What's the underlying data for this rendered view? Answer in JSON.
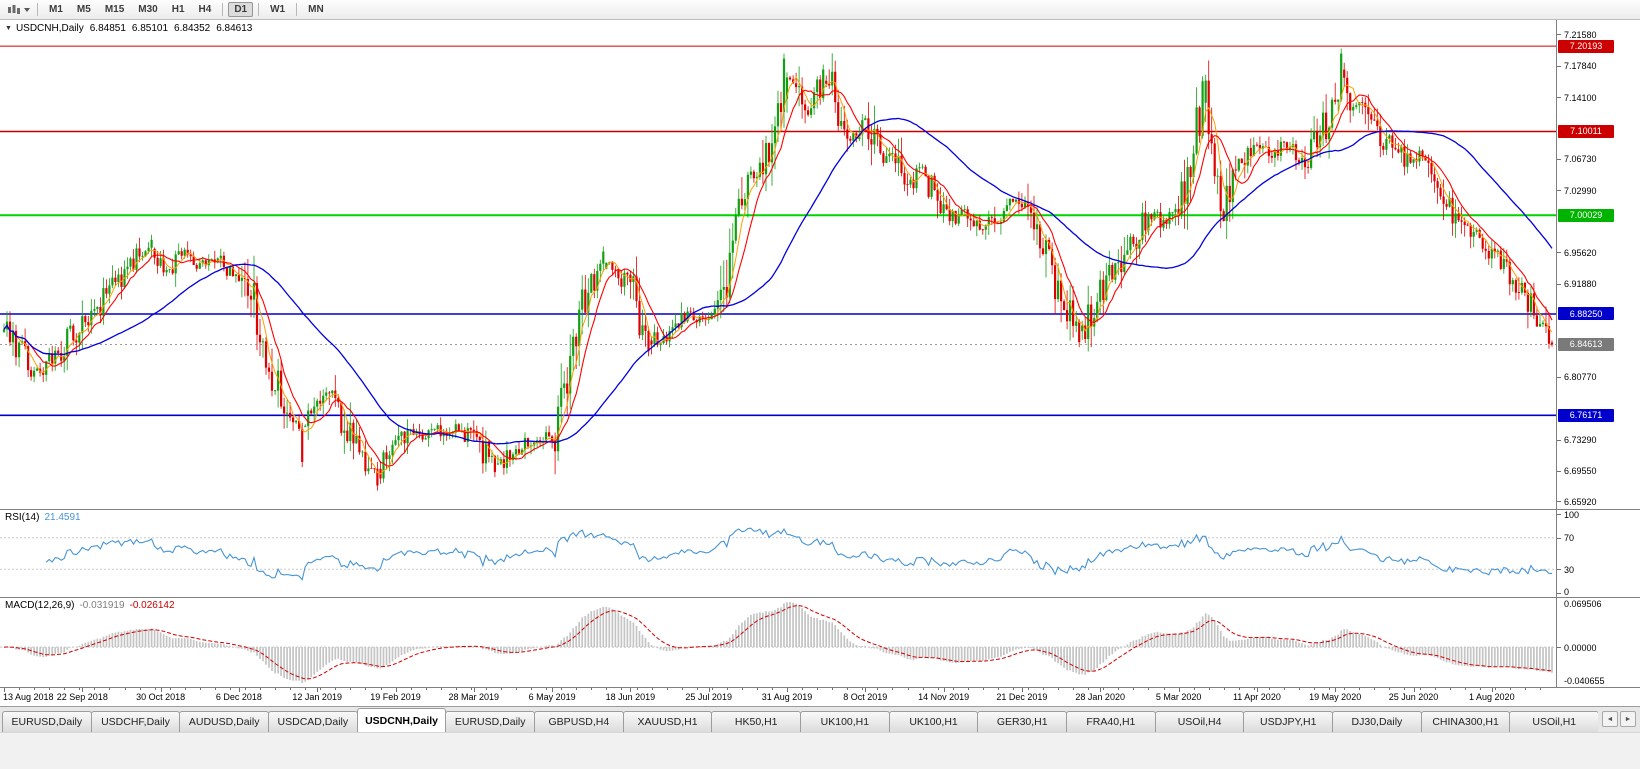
{
  "toolbar": {
    "timeframes": [
      {
        "label": "M1",
        "active": false
      },
      {
        "label": "M5",
        "active": false
      },
      {
        "label": "M15",
        "active": false
      },
      {
        "label": "M30",
        "active": false
      },
      {
        "label": "H1",
        "active": false
      },
      {
        "label": "H4",
        "active": false
      },
      {
        "label": "D1",
        "active": true
      },
      {
        "label": "W1",
        "active": false
      },
      {
        "label": "MN",
        "active": false
      }
    ]
  },
  "chart": {
    "collapse_arrow": "▼",
    "symbol_title": "USDCNH,Daily",
    "ohlc": {
      "open": "6.84851",
      "high": "6.85101",
      "low": "6.84352",
      "close": "6.84613"
    }
  },
  "price_axis": {
    "labels": [
      "7.21580",
      "7.17840",
      "7.14100",
      "7.10360",
      "7.06730",
      "7.02990",
      "6.99250",
      "6.95620",
      "6.91880",
      "6.88140",
      "6.84400",
      "6.80770",
      "6.77030",
      "6.73290",
      "6.69550",
      "6.65920"
    ],
    "badges": [
      {
        "text": "7.20193",
        "price": 7.20193,
        "color": "#cc0000"
      },
      {
        "text": "7.10011",
        "price": 7.10011,
        "color": "#cc0000"
      },
      {
        "text": "7.00029",
        "price": 7.00029,
        "color": "#00b300"
      },
      {
        "text": "6.88250",
        "price": 6.8825,
        "color": "#0000cc"
      },
      {
        "text": "6.84613",
        "price": 6.84613,
        "color": "#7a7a7a"
      },
      {
        "text": "6.76171",
        "price": 6.76171,
        "color": "#0000cc"
      }
    ]
  },
  "rsi_panel": {
    "name": "RSI(14)",
    "value": "21.4591",
    "axis_labels": [
      {
        "text": "100",
        "v": 100
      },
      {
        "text": "70",
        "v": 70
      },
      {
        "text": "30",
        "v": 30
      },
      {
        "text": "0",
        "v": 0
      }
    ]
  },
  "macd_panel": {
    "name": "MACD(12,26,9)",
    "value_main": "-0.031919",
    "value_signal": "-0.026142",
    "axis_top": "0.069506",
    "axis_zero": "0.00000",
    "axis_bottom": "-0.040655"
  },
  "date_axis": {
    "labels": [
      "13 Aug 2018",
      "22 Sep 2018",
      "30 Oct 2018",
      "6 Dec 2018",
      "12 Jan 2019",
      "19 Feb 2019",
      "28 Mar 2019",
      "6 May 2019",
      "18 Jun 2019",
      "25 Jul 2019",
      "31 Aug 2019",
      "8 Oct 2019",
      "14 Nov 2019",
      "21 Dec 2019",
      "28 Jan 2020",
      "5 Mar 2020",
      "11 Apr 2020",
      "19 May 2020",
      "25 Jun 2020",
      "1 Aug 2020"
    ]
  },
  "tabs": {
    "scroll_left": "◄",
    "scroll_right": "►",
    "items": [
      {
        "label": "EURUSD,Daily",
        "active": false
      },
      {
        "label": "USDCHF,Daily",
        "active": false
      },
      {
        "label": "AUDUSD,Daily",
        "active": false
      },
      {
        "label": "USDCAD,Daily",
        "active": false
      },
      {
        "label": "USDCNH,Daily",
        "active": true
      },
      {
        "label": "EURUSD,Daily",
        "active": false
      },
      {
        "label": "GBPUSD,H4",
        "active": false
      },
      {
        "label": "XAUUSD,H1",
        "active": false
      },
      {
        "label": "HK50,H1",
        "active": false
      },
      {
        "label": "UK100,H1",
        "active": false
      },
      {
        "label": "UK100,H1",
        "active": false
      },
      {
        "label": "GER30,H1",
        "active": false
      },
      {
        "label": "FRA40,H1",
        "active": false
      },
      {
        "label": "USOil,H4",
        "active": false
      },
      {
        "label": "USDJPY,H1",
        "active": false
      },
      {
        "label": "DJ30,Daily",
        "active": false
      },
      {
        "label": "CHINA300,H1",
        "active": false
      },
      {
        "label": "USOil,H1",
        "active": false
      }
    ]
  },
  "chart_data": {
    "type": "candlestick",
    "symbol": "USDCNH",
    "timeframe": "Daily",
    "candles": 515,
    "seed": 20200813,
    "ylim": [
      6.65,
      7.233
    ],
    "anchors": [
      [
        0,
        6.862
      ],
      [
        5,
        6.84
      ],
      [
        11,
        6.815
      ],
      [
        17,
        6.832
      ],
      [
        23,
        6.858
      ],
      [
        29,
        6.884
      ],
      [
        35,
        6.912
      ],
      [
        41,
        6.938
      ],
      [
        47,
        6.956
      ],
      [
        51,
        6.946
      ],
      [
        55,
        6.936
      ],
      [
        59,
        6.956
      ],
      [
        63,
        6.946
      ],
      [
        67,
        6.936
      ],
      [
        71,
        6.948
      ],
      [
        75,
        6.934
      ],
      [
        79,
        6.928
      ],
      [
        83,
        6.892
      ],
      [
        87,
        6.84
      ],
      [
        91,
        6.794
      ],
      [
        95,
        6.768
      ],
      [
        99,
        6.754
      ],
      [
        103,
        6.776
      ],
      [
        107,
        6.79
      ],
      [
        111,
        6.77
      ],
      [
        115,
        6.734
      ],
      [
        119,
        6.708
      ],
      [
        123,
        6.694
      ],
      [
        127,
        6.712
      ],
      [
        131,
        6.728
      ],
      [
        135,
        6.744
      ],
      [
        139,
        6.736
      ],
      [
        143,
        6.748
      ],
      [
        147,
        6.74
      ],
      [
        151,
        6.746
      ],
      [
        155,
        6.736
      ],
      [
        159,
        6.718
      ],
      [
        163,
        6.702
      ],
      [
        167,
        6.712
      ],
      [
        171,
        6.722
      ],
      [
        175,
        6.73
      ],
      [
        179,
        6.734
      ],
      [
        183,
        6.744
      ],
      [
        186,
        6.8
      ],
      [
        189,
        6.862
      ],
      [
        192,
        6.9
      ],
      [
        196,
        6.924
      ],
      [
        200,
        6.94
      ],
      [
        204,
        6.93
      ],
      [
        208,
        6.916
      ],
      [
        212,
        6.878
      ],
      [
        215,
        6.854
      ],
      [
        219,
        6.852
      ],
      [
        223,
        6.87
      ],
      [
        227,
        6.882
      ],
      [
        231,
        6.876
      ],
      [
        235,
        6.882
      ],
      [
        238,
        6.894
      ],
      [
        241,
        6.934
      ],
      [
        244,
        7.004
      ],
      [
        247,
        7.05
      ],
      [
        250,
        7.042
      ],
      [
        253,
        7.072
      ],
      [
        256,
        7.108
      ],
      [
        259,
        7.152
      ],
      [
        262,
        7.162
      ],
      [
        265,
        7.128
      ],
      [
        268,
        7.12
      ],
      [
        271,
        7.156
      ],
      [
        274,
        7.16
      ],
      [
        277,
        7.128
      ],
      [
        280,
        7.106
      ],
      [
        283,
        7.09
      ],
      [
        286,
        7.112
      ],
      [
        289,
        7.084
      ],
      [
        292,
        7.064
      ],
      [
        295,
        7.076
      ],
      [
        298,
        7.056
      ],
      [
        301,
        7.04
      ],
      [
        304,
        7.052
      ],
      [
        307,
        7.038
      ],
      [
        310,
        7.02
      ],
      [
        313,
        7.004
      ],
      [
        316,
        6.992
      ],
      [
        319,
        7.004
      ],
      [
        322,
        6.988
      ],
      [
        325,
        6.978
      ],
      [
        328,
        6.992
      ],
      [
        331,
        7.004
      ],
      [
        334,
        7.012
      ],
      [
        337,
        7.016
      ],
      [
        340,
        6.998
      ],
      [
        343,
        6.976
      ],
      [
        346,
        6.95
      ],
      [
        349,
        6.926
      ],
      [
        352,
        6.898
      ],
      [
        355,
        6.87
      ],
      [
        358,
        6.864
      ],
      [
        361,
        6.886
      ],
      [
        364,
        6.906
      ],
      [
        367,
        6.924
      ],
      [
        370,
        6.94
      ],
      [
        373,
        6.96
      ],
      [
        376,
        6.978
      ],
      [
        379,
        6.994
      ],
      [
        382,
        7.004
      ],
      [
        385,
        6.99
      ],
      [
        388,
        7.002
      ],
      [
        391,
        7.014
      ],
      [
        394,
        7.064
      ],
      [
        397,
        7.124
      ],
      [
        399,
        7.146
      ],
      [
        401,
        7.094
      ],
      [
        403,
        7.042
      ],
      [
        405,
        7.004
      ],
      [
        407,
        7.03
      ],
      [
        409,
        7.068
      ],
      [
        411,
        7.054
      ],
      [
        413,
        7.078
      ],
      [
        415,
        7.09
      ],
      [
        418,
        7.082
      ],
      [
        421,
        7.068
      ],
      [
        424,
        7.086
      ],
      [
        427,
        7.076
      ],
      [
        430,
        7.062
      ],
      [
        433,
        7.072
      ],
      [
        436,
        7.092
      ],
      [
        439,
        7.114
      ],
      [
        442,
        7.14
      ],
      [
        444,
        7.17
      ],
      [
        446,
        7.154
      ],
      [
        448,
        7.13
      ],
      [
        450,
        7.142
      ],
      [
        452,
        7.124
      ],
      [
        455,
        7.108
      ],
      [
        458,
        7.092
      ],
      [
        461,
        7.08
      ],
      [
        464,
        7.072
      ],
      [
        467,
        7.062
      ],
      [
        470,
        7.07
      ],
      [
        473,
        7.058
      ],
      [
        476,
        7.04
      ],
      [
        479,
        7.016
      ],
      [
        482,
        6.998
      ],
      [
        485,
        6.986
      ],
      [
        488,
        6.976
      ],
      [
        491,
        6.97
      ],
      [
        494,
        6.958
      ],
      [
        497,
        6.944
      ],
      [
        500,
        6.93
      ],
      [
        503,
        6.916
      ],
      [
        506,
        6.9
      ],
      [
        509,
        6.882
      ],
      [
        512,
        6.862
      ],
      [
        514,
        6.848
      ]
    ],
    "spikes": [
      {
        "i": 49,
        "high": 6.977
      },
      {
        "i": 99,
        "low": 6.7
      },
      {
        "i": 124,
        "low": 6.672
      },
      {
        "i": 163,
        "low": 6.688
      },
      {
        "i": 199,
        "high": 6.963
      },
      {
        "i": 214,
        "low": 6.832
      },
      {
        "i": 259,
        "high": 7.193
      },
      {
        "i": 272,
        "high": 7.18
      },
      {
        "i": 357,
        "low": 6.843
      },
      {
        "i": 398,
        "high": 7.166
      },
      {
        "i": 444,
        "high": 7.199
      },
      {
        "i": 513,
        "low": 6.841
      }
    ],
    "last_candle": {
      "o": 6.84851,
      "h": 6.85101,
      "l": 6.84352,
      "c": 6.84613
    },
    "moving_averages": [
      {
        "period": 5,
        "color": "#ff9d00",
        "width": 1
      },
      {
        "period": 10,
        "color": "#ff0000",
        "width": 1.1
      },
      {
        "period": 45,
        "color": "#0000e0",
        "width": 1.3
      }
    ],
    "levels": [
      {
        "price": 7.20193,
        "color": "#cc0000",
        "width": 1
      },
      {
        "price": 7.10011,
        "color": "#cc0000",
        "width": 1.4
      },
      {
        "price": 7.00029,
        "color": "#00d300",
        "width": 2
      },
      {
        "price": 6.8825,
        "color": "#0000cc",
        "width": 1.6
      },
      {
        "price": 6.76171,
        "color": "#0000cc",
        "width": 1.6
      }
    ],
    "current_price": 6.84613,
    "up_color": "#11a011",
    "down_color": "#e00000",
    "rsi": {
      "period": 14,
      "color": "#4694d6",
      "levels": [
        70,
        30
      ],
      "last": 21.4591
    },
    "macd": {
      "fast": 12,
      "slow": 26,
      "signal": 9,
      "hist_color": "#c4c4c4",
      "signal_color": "#d40000",
      "last_main": -0.031919,
      "last_signal": -0.026142
    }
  }
}
